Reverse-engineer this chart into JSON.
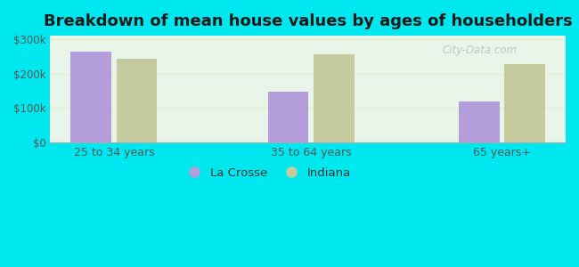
{
  "title": "Breakdown of mean house values by ages of householders",
  "categories": [
    "25 to 34 years",
    "35 to 64 years",
    "65 years+"
  ],
  "la_crosse_values": [
    265000,
    148000,
    120000
  ],
  "indiana_values": [
    242000,
    255000,
    228000
  ],
  "bar_color_lacrosse": "#b39ddb",
  "bar_color_indiana": "#c5cb9e",
  "ylim": [
    0,
    310000
  ],
  "yticks": [
    0,
    100000,
    200000,
    300000
  ],
  "ytick_labels": [
    "$0",
    "$100k",
    "$200k",
    "$300k"
  ],
  "background_outer": "#00e8ef",
  "legend_lacrosse": "La Crosse",
  "legend_indiana": "Indiana",
  "title_fontsize": 13,
  "bar_width": 0.32,
  "watermark": "City-Data.com"
}
